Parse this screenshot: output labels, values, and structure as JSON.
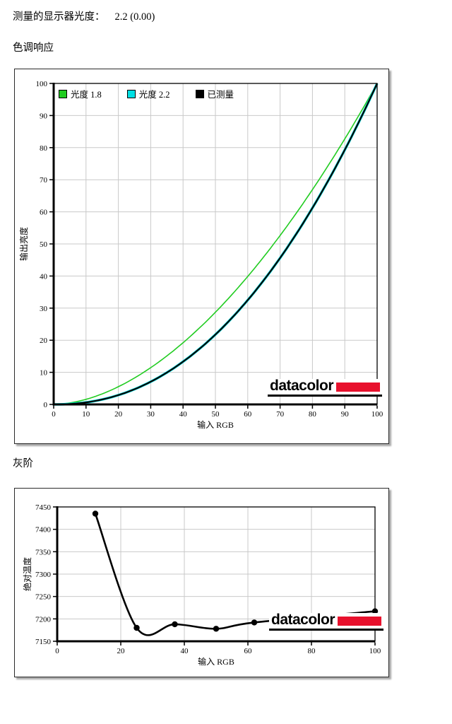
{
  "page": {
    "measured_gamma_label": "测量的显示器光度：",
    "measured_gamma_value": "2.2 (0.00)",
    "section1_title": "色调响应",
    "section2_title": "灰阶"
  },
  "brand": {
    "logo_text": "datacolor",
    "logo_red": "#e8112d"
  },
  "colors": {
    "grid": "#c9c9c9",
    "axis": "#000000",
    "gamma18": "#21cc21",
    "gamma22": "#00e0e4",
    "measured": "#000000"
  },
  "chart_data": [
    {
      "type": "line",
      "title": "色调响应",
      "xlabel": "输入 RGB",
      "ylabel": "输出亮度",
      "xlim": [
        0,
        100
      ],
      "ylim": [
        0,
        100
      ],
      "x_ticks": [
        0,
        10,
        20,
        30,
        40,
        50,
        60,
        70,
        80,
        90,
        100
      ],
      "y_ticks": [
        0,
        10,
        20,
        30,
        40,
        50,
        60,
        70,
        80,
        90,
        100
      ],
      "grid": true,
      "legend_position": "top-left-inside",
      "series": [
        {
          "name": "光度 1.8",
          "color": "#21cc21",
          "curve": "power",
          "gamma": 1.8,
          "width": 1.6,
          "sample_x": [
            0,
            10,
            20,
            30,
            40,
            50,
            60,
            70,
            80,
            90,
            100
          ],
          "sample_y": [
            0,
            1.6,
            5.5,
            11.5,
            19.2,
            28.7,
            39.9,
            52.6,
            66.9,
            82.7,
            100
          ]
        },
        {
          "name": "光度 2.2",
          "color": "#00e0e4",
          "curve": "power",
          "gamma": 2.2,
          "width": 3.6,
          "sample_x": [
            0,
            10,
            20,
            30,
            40,
            50,
            60,
            70,
            80,
            90,
            100
          ],
          "sample_y": [
            0,
            0.6,
            2.9,
            7.1,
            13.3,
            21.8,
            32.5,
            45.6,
            61.2,
            79.3,
            100
          ]
        },
        {
          "name": "已测量",
          "color": "#000000",
          "curve": "power",
          "gamma": 2.2,
          "width": 2.2,
          "sample_x": [
            0,
            10,
            20,
            30,
            40,
            50,
            60,
            70,
            80,
            90,
            100
          ],
          "sample_y": [
            0,
            0.6,
            2.9,
            7.1,
            13.3,
            21.8,
            32.5,
            45.6,
            61.2,
            79.3,
            100
          ]
        }
      ]
    },
    {
      "type": "line",
      "title": "灰阶",
      "xlabel": "输入 RGB",
      "ylabel": "绝对温度",
      "xlim": [
        0,
        100
      ],
      "ylim": [
        7150,
        7450
      ],
      "x_ticks": [
        0,
        20,
        40,
        60,
        80,
        100
      ],
      "y_ticks": [
        7150,
        7200,
        7250,
        7300,
        7350,
        7400,
        7450
      ],
      "grid": true,
      "series": [
        {
          "name": "已测量",
          "color": "#000000",
          "smooth": true,
          "markers": true,
          "width": 2.6,
          "x": [
            12,
            25,
            37,
            50,
            62,
            100
          ],
          "y": [
            7435,
            7180,
            7188,
            7178,
            7192,
            7217
          ]
        }
      ]
    }
  ]
}
